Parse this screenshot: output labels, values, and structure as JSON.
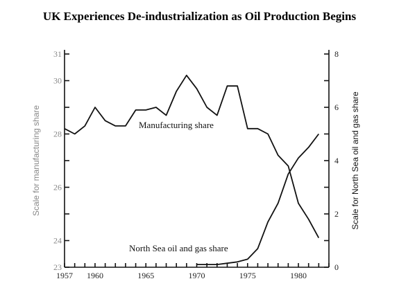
{
  "title": "UK Experiences De-industrialization as Oil Production Begins",
  "chart_data": {
    "type": "line",
    "title": "UK Experiences De-industrialization as Oil Production Begins",
    "xlabel": "",
    "ylabel_left": "Scale for manufacturing share",
    "ylabel_right": "Scale for North Sea oil and gas share",
    "xlim": [
      1957,
      1983
    ],
    "ylim_left": [
      23,
      31
    ],
    "ylim_right": [
      0,
      8
    ],
    "x_ticks": [
      1957,
      1960,
      1965,
      1970,
      1975,
      1980
    ],
    "y_left_ticks": [
      23,
      24,
      25,
      26,
      27,
      28,
      29,
      30,
      31
    ],
    "y_left_tick_labels": [
      "23",
      "24",
      "",
      "26",
      "",
      "28",
      "",
      "30",
      "31"
    ],
    "y_right_ticks": [
      0,
      1,
      2,
      3,
      4,
      5,
      6,
      7,
      8
    ],
    "y_right_tick_labels": [
      "0",
      "",
      "2",
      "",
      "4",
      "",
      "6",
      "",
      "8"
    ],
    "grid": false,
    "series": [
      {
        "name": "Manufacturing share",
        "axis": "left",
        "x": [
          1957,
          1958,
          1959,
          1960,
          1961,
          1962,
          1963,
          1964,
          1965,
          1966,
          1967,
          1968,
          1969,
          1970,
          1971,
          1972,
          1973,
          1974,
          1975,
          1976,
          1977,
          1978,
          1979,
          1980,
          1981,
          1982
        ],
        "y": [
          28.2,
          28.0,
          28.3,
          29.0,
          28.5,
          28.3,
          28.3,
          28.9,
          28.9,
          29.0,
          28.7,
          29.6,
          30.2,
          29.7,
          29.0,
          28.7,
          29.8,
          29.8,
          28.2,
          28.2,
          28.0,
          27.2,
          26.8,
          25.4,
          24.8,
          24.1
        ]
      },
      {
        "name": "North Sea oil and gas share",
        "axis": "right",
        "x": [
          1970,
          1971,
          1972,
          1973,
          1974,
          1975,
          1976,
          1977,
          1978,
          1979,
          1980,
          1981,
          1982
        ],
        "y": [
          0.1,
          0.1,
          0.1,
          0.15,
          0.2,
          0.3,
          0.7,
          1.7,
          2.4,
          3.5,
          4.1,
          4.5,
          5.0
        ]
      }
    ],
    "annotations": [
      "Manufacturing share",
      "North Sea oil and gas share"
    ]
  }
}
